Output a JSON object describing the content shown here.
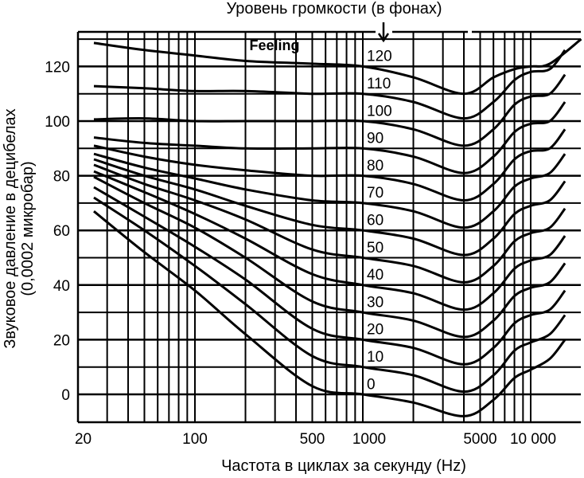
{
  "chart_data": {
    "type": "line",
    "title": "Уровень громкости (в фонах)",
    "xlabel": "Частота в циклах за секунду (Hz)",
    "ylabel": [
      "Звуковое давление в децибелах",
      "(0,0002 микробар)"
    ],
    "xscale": "log",
    "xlim": [
      20,
      20000
    ],
    "ylim": [
      -10.5,
      132.7
    ],
    "grid": true,
    "x_tick_labels": [
      {
        "value": 20,
        "label": "20"
      },
      {
        "value": 100,
        "label": "100"
      },
      {
        "value": 500,
        "label": "500"
      },
      {
        "value": 1000,
        "label": "1000"
      },
      {
        "value": 5000,
        "label": "5000"
      },
      {
        "value": 10000,
        "label": "10 000"
      }
    ],
    "y_tick_labels": [
      {
        "value": 120,
        "label": "120"
      },
      {
        "value": 100,
        "label": "100"
      },
      {
        "value": 80,
        "label": "80"
      },
      {
        "value": 60,
        "label": "60"
      },
      {
        "value": 40,
        "label": "40"
      },
      {
        "value": 20,
        "label": "20"
      },
      {
        "value": 0,
        "label": "0"
      }
    ],
    "annotation": "Feeling",
    "x": [
      25,
      50,
      100,
      200,
      500,
      1000,
      2000,
      4000,
      6000,
      8000,
      10000,
      13000,
      16000
    ],
    "series": [
      {
        "name": "0",
        "values": [
          67,
          52,
          38,
          22,
          3,
          0,
          -3,
          -8,
          -2,
          6,
          9,
          13,
          20
        ]
      },
      {
        "name": "10",
        "values": [
          72,
          60,
          47,
          33,
          14,
          10,
          7,
          1,
          7,
          16,
          19,
          22,
          29
        ]
      },
      {
        "name": "20",
        "values": [
          75.8,
          65,
          54,
          42,
          24,
          20,
          17,
          11,
          17,
          26,
          29,
          31,
          38
        ]
      },
      {
        "name": "30",
        "values": [
          79.6,
          70,
          61,
          50,
          34,
          30,
          27,
          21,
          27,
          36,
          39,
          41,
          48
        ]
      },
      {
        "name": "40",
        "values": [
          81.6,
          74,
          66,
          57,
          44,
          40,
          37,
          31,
          37,
          46,
          49,
          51,
          58
        ]
      },
      {
        "name": "50",
        "values": [
          84,
          77,
          71,
          64,
          53,
          50,
          47,
          41,
          47,
          56,
          59,
          61,
          68
        ]
      },
      {
        "name": "60",
        "values": [
          86,
          80,
          75,
          69,
          62,
          60,
          57,
          51,
          57,
          66,
          69,
          71,
          78
        ]
      },
      {
        "name": "70",
        "values": [
          88,
          83,
          79,
          75,
          71,
          70,
          67,
          61,
          67,
          76,
          79,
          81,
          88
        ]
      },
      {
        "name": "80",
        "values": [
          91,
          87,
          84,
          82,
          80,
          80,
          77,
          71,
          77,
          86,
          89,
          90,
          97
        ]
      },
      {
        "name": "90",
        "values": [
          94,
          92,
          91,
          90,
          90,
          90,
          87,
          81,
          87,
          96,
          99,
          100,
          107
        ]
      },
      {
        "name": "100",
        "values": [
          100.6,
          101,
          100,
          100,
          100,
          100,
          97,
          91,
          97,
          106,
          109,
          110,
          117
        ]
      },
      {
        "name": "110",
        "values": [
          112.8,
          112,
          111,
          111,
          110,
          110,
          107,
          101,
          107,
          115,
          118,
          119,
          126
        ]
      },
      {
        "name": "120",
        "values": [
          128.6,
          126,
          124,
          122,
          121,
          120,
          116,
          110,
          116,
          119,
          120,
          121,
          130
        ]
      }
    ],
    "line_color": "#000000"
  }
}
